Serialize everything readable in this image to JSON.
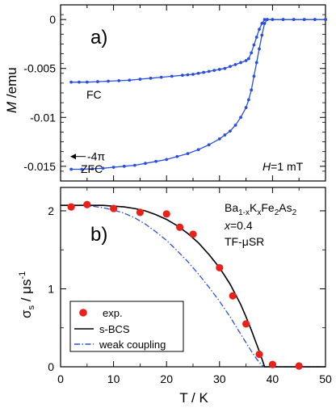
{
  "chart_data": [
    {
      "type": "line",
      "panel_label": "a)",
      "ylabel_italic": "M",
      "ylabel_rest": " /emu",
      "ylim": [
        -0.0165,
        0.0015
      ],
      "xlim": [
        0,
        50
      ],
      "yticks": [
        0,
        -0.005,
        -0.01,
        -0.015
      ],
      "ytick_labels": [
        "0",
        "-0.005",
        "-0.01",
        "-0.015"
      ],
      "xticks": [
        0,
        10,
        20,
        30,
        40,
        50
      ],
      "color": "#2a4fe0",
      "annotations": {
        "fc": "FC",
        "zfc": "ZFC",
        "four_pi": "-4π",
        "field_italic": "H",
        "field_rest": "=1 mT"
      },
      "four_pi_value": -0.014,
      "series": [
        {
          "name": "FC",
          "x": [
            2,
            3.5,
            5,
            7,
            9,
            11,
            13,
            15,
            17,
            19,
            21,
            23,
            24,
            25,
            26,
            27,
            28,
            29,
            30,
            31,
            32,
            33,
            34,
            35,
            35.5,
            36,
            36.5,
            37,
            37.5,
            38,
            38.5,
            39,
            40,
            42,
            44,
            46,
            48,
            50
          ],
          "y": [
            -0.0064,
            -0.0064,
            -0.0064,
            -0.00635,
            -0.0063,
            -0.00625,
            -0.0062,
            -0.0061,
            -0.006,
            -0.0059,
            -0.0058,
            -0.0057,
            -0.00565,
            -0.0056,
            -0.0055,
            -0.0054,
            -0.0053,
            -0.0052,
            -0.0051,
            -0.005,
            -0.0048,
            -0.0046,
            -0.0044,
            -0.0042,
            -0.004,
            -0.0034,
            -0.0026,
            -0.0018,
            -0.001,
            -0.0004,
            0,
            0,
            0,
            0,
            0,
            0,
            0,
            0
          ]
        },
        {
          "name": "ZFC",
          "x": [
            2,
            4,
            6,
            8,
            10,
            12,
            14,
            16,
            18,
            20,
            22,
            24,
            26,
            28,
            30,
            31,
            32,
            33,
            34,
            35,
            35.5,
            36,
            36.5,
            37,
            37.5,
            38,
            38.5,
            39,
            40,
            42,
            44,
            46,
            48,
            50
          ],
          "y": [
            -0.0153,
            -0.0153,
            -0.01525,
            -0.0152,
            -0.0151,
            -0.015,
            -0.0149,
            -0.0147,
            -0.0145,
            -0.0143,
            -0.014,
            -0.0137,
            -0.0133,
            -0.0128,
            -0.0122,
            -0.0118,
            -0.0114,
            -0.0108,
            -0.01,
            -0.009,
            -0.0082,
            -0.0072,
            -0.0058,
            -0.0044,
            -0.003,
            -0.0016,
            -0.0004,
            0,
            0,
            0,
            0,
            0,
            0,
            0
          ]
        }
      ]
    },
    {
      "type": "scatter",
      "panel_label": "b)",
      "xlabel": "T / K",
      "ylabel_main": "σ",
      "ylabel_sub": "s",
      "ylabel_mid": " / μs",
      "ylabel_sup": "-1",
      "xlim": [
        0,
        50
      ],
      "ylim": [
        0,
        2.3
      ],
      "xticks": [
        0,
        10,
        20,
        30,
        40,
        50
      ],
      "yticks": [
        0,
        1,
        2
      ],
      "sample_info": {
        "formula": [
          {
            "t": "Ba",
            "s": "n"
          },
          {
            "t": "1-x",
            "s": "sub"
          },
          {
            "t": "K",
            "s": "n"
          },
          {
            "t": "x",
            "s": "sub"
          },
          {
            "t": "Fe",
            "s": "n"
          },
          {
            "t": "2",
            "s": "sub"
          },
          {
            "t": "As",
            "s": "n"
          },
          {
            "t": "2",
            "s": "sub"
          }
        ],
        "x_italic": "x",
        "x_rest": "=0.4",
        "method": "TF-μSR"
      },
      "legend": {
        "position": "bottom-left",
        "entries": [
          "exp.",
          "s-BCS",
          "weak coupling"
        ]
      },
      "colors": {
        "exp": "#e8221a",
        "sbcs": "#000000",
        "weak": "#2a4fe0"
      },
      "series": [
        {
          "name": "exp.",
          "x": [
            2,
            5,
            10,
            15,
            20,
            22.5,
            25,
            30,
            32.5,
            35,
            37.5,
            40,
            45
          ],
          "y": [
            2.05,
            2.08,
            2.03,
            1.98,
            1.96,
            1.79,
            1.7,
            1.27,
            0.91,
            0.55,
            0.16,
            0.03,
            0.01
          ]
        },
        {
          "name": "s-BCS",
          "Tc": 38.5,
          "sigma0": 2.07,
          "x": [
            0,
            2,
            4,
            6,
            8,
            10,
            12,
            14,
            16,
            18,
            20,
            22,
            24,
            26,
            28,
            30,
            32,
            34,
            35,
            36,
            37,
            37.5,
            38,
            38.5,
            40,
            45,
            50
          ],
          "y": [
            2.07,
            2.07,
            2.07,
            2.07,
            2.07,
            2.06,
            2.05,
            2.03,
            2.0,
            1.95,
            1.89,
            1.81,
            1.71,
            1.59,
            1.44,
            1.27,
            1.06,
            0.8,
            0.64,
            0.47,
            0.29,
            0.2,
            0.1,
            0,
            0,
            0,
            0
          ]
        },
        {
          "name": "weak coupling",
          "Tc": 38.5,
          "sigma0": 2.07,
          "x": [
            0,
            2,
            4,
            6,
            8,
            10,
            12,
            14,
            16,
            18,
            20,
            22,
            24,
            26,
            28,
            30,
            32,
            34,
            35,
            36,
            37,
            38,
            38.5,
            40,
            45,
            50
          ],
          "y": [
            2.07,
            2.07,
            2.07,
            2.06,
            2.04,
            2.01,
            1.97,
            1.91,
            1.83,
            1.73,
            1.62,
            1.49,
            1.35,
            1.19,
            1.02,
            0.84,
            0.64,
            0.42,
            0.31,
            0.2,
            0.1,
            0.02,
            0,
            0,
            0,
            0
          ]
        }
      ]
    }
  ]
}
